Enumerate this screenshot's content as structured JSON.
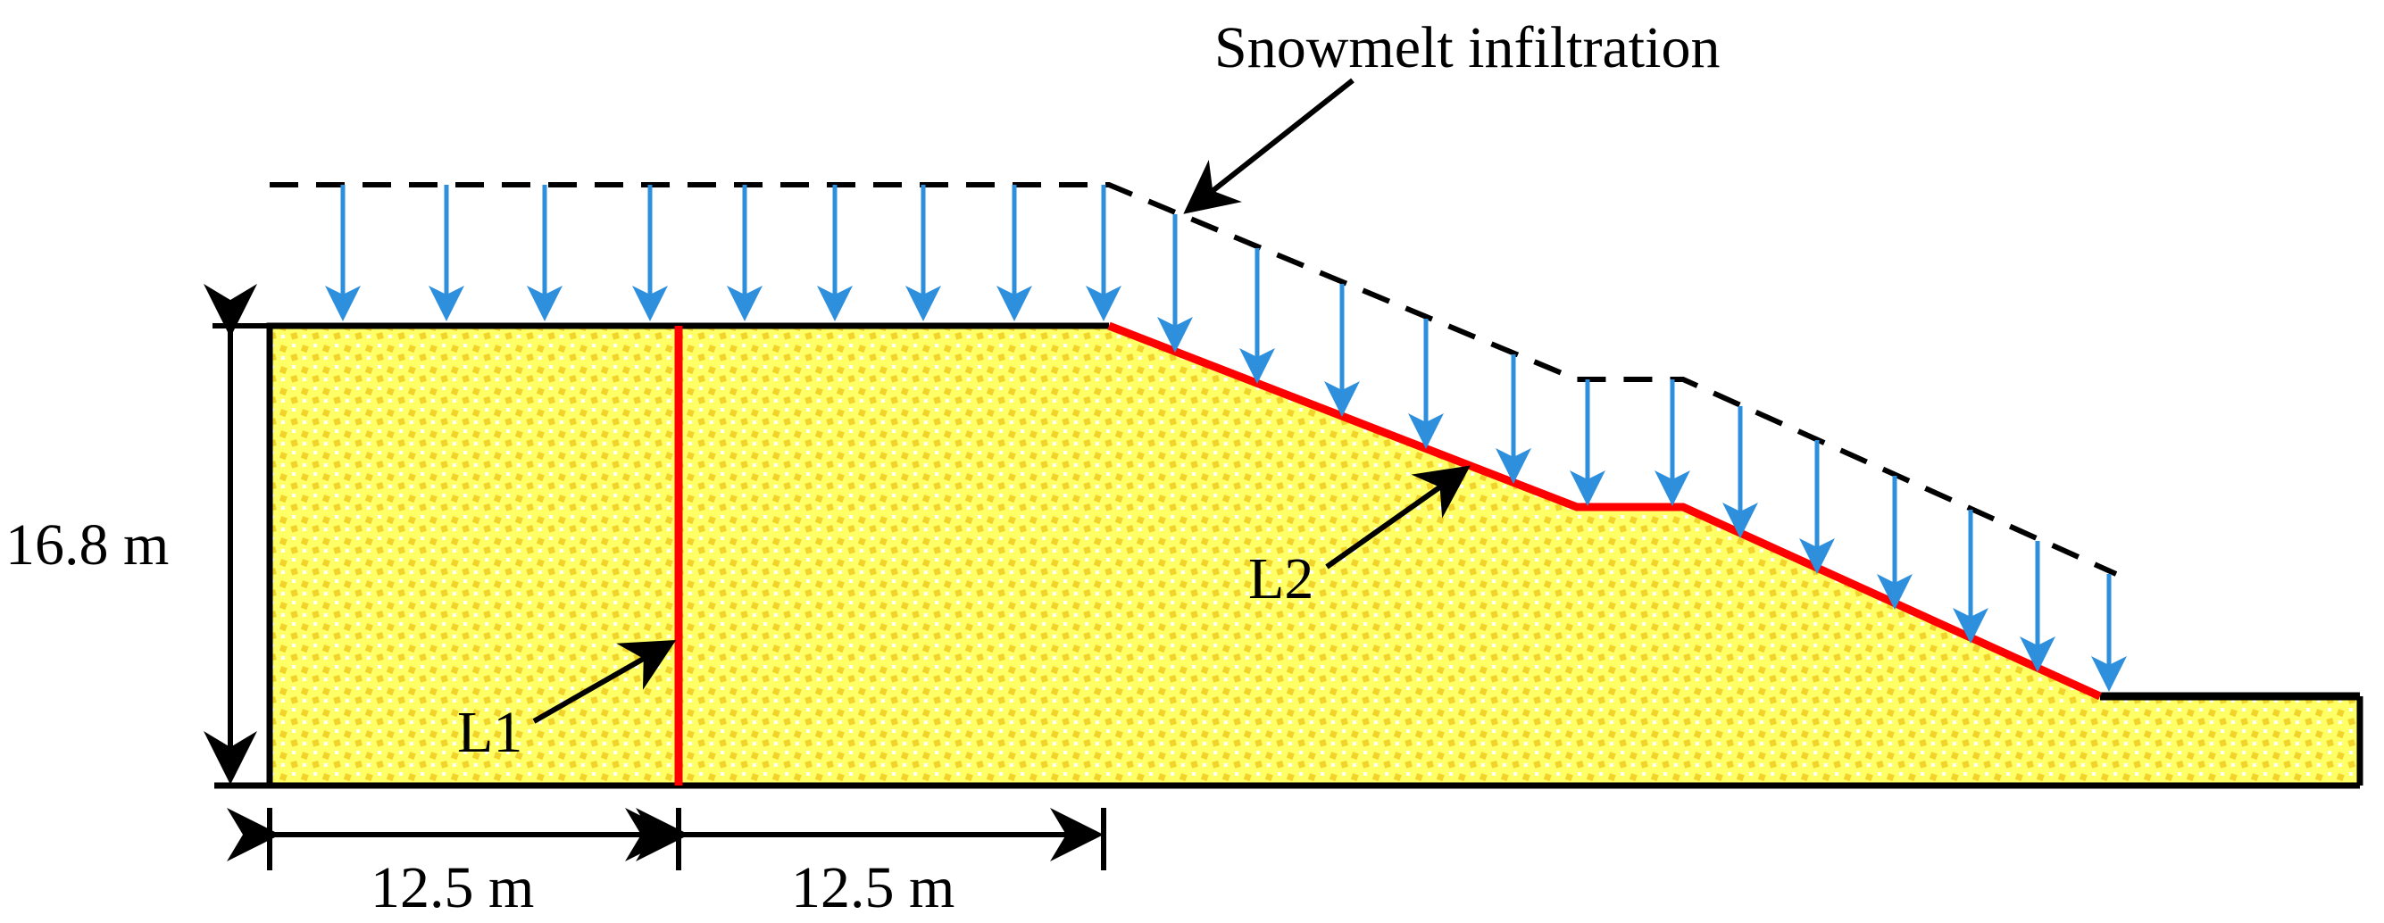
{
  "title": "Snowmelt infiltration",
  "labels": {
    "line1": "L1",
    "line2": "L2",
    "height": "16.8 m",
    "width_left": "12.5 m",
    "width_right": "12.5 m"
  },
  "colors": {
    "soil_fill": "#ffff66",
    "soil_dots": "#f2d32b",
    "monitor_line": "#ff0000",
    "infiltration_arrow": "#2e8fdc",
    "outline": "#000000"
  }
}
